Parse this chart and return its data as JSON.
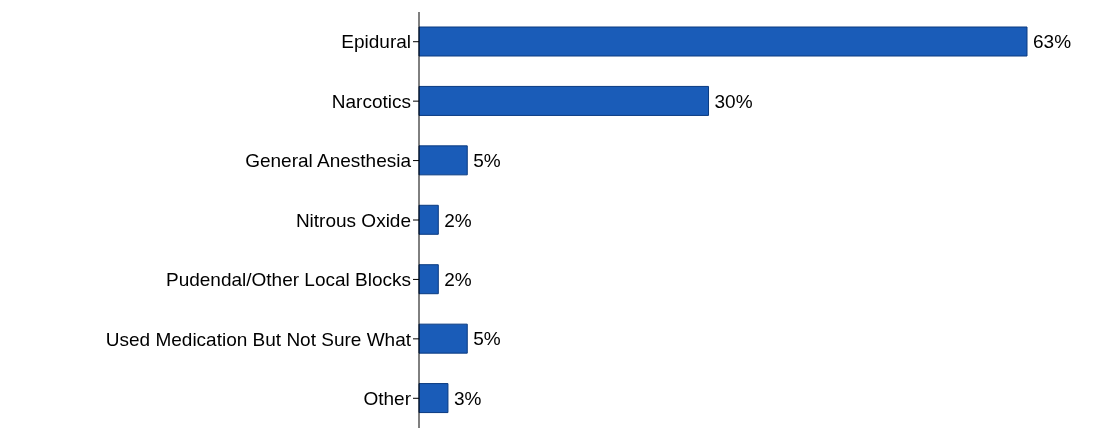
{
  "chart_data": {
    "type": "bar",
    "orientation": "horizontal",
    "categories": [
      "Epidural",
      "Narcotics",
      "General Anesthesia",
      "Nitrous Oxide",
      "Pudendal/Other Local Blocks",
      "Used Medication But Not Sure What",
      "Other"
    ],
    "values": [
      63,
      30,
      5,
      2,
      2,
      5,
      3
    ],
    "value_labels": [
      "63%",
      "30%",
      "5%",
      "2%",
      "2%",
      "5%",
      "3%"
    ],
    "color": "#1a5cb8"
  }
}
